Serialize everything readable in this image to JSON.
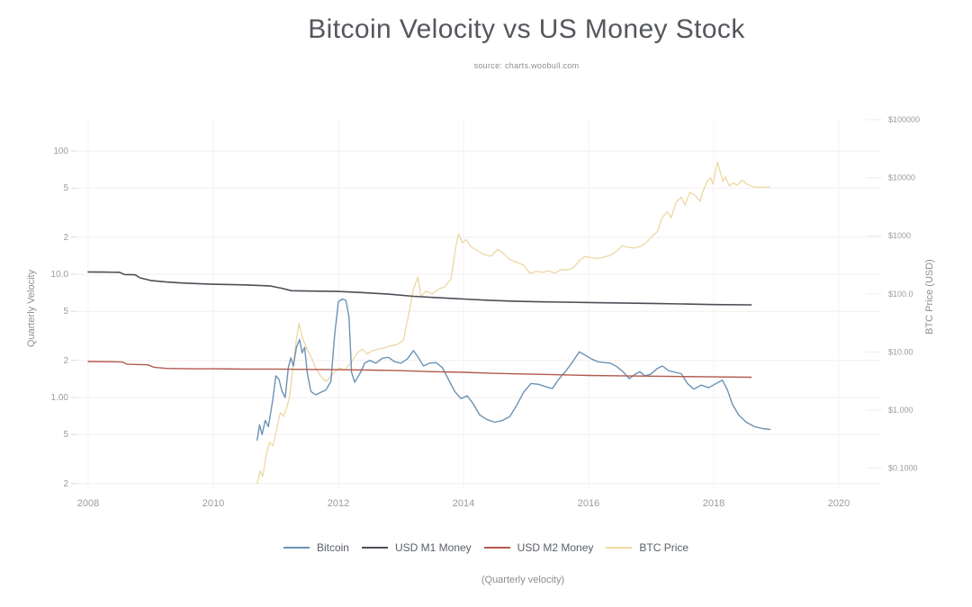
{
  "chart_data": {
    "type": "line",
    "title": "Bitcoin Velocity vs US Money Stock",
    "source": "source: charts.woobull.com",
    "footnote": "(Quarterly velocity)",
    "colors": {
      "background": "#ffffff",
      "grid": "#f5eeee",
      "tick_text": "#9b9b9b",
      "title_text": "#54575c"
    },
    "x_axis": {
      "ticks": [
        {
          "label": "2008",
          "value": 2008
        },
        {
          "label": "2010",
          "value": 2010
        },
        {
          "label": "2012",
          "value": 2012
        },
        {
          "label": "2014",
          "value": 2014
        },
        {
          "label": "2016",
          "value": 2016
        },
        {
          "label": "2018",
          "value": 2018
        },
        {
          "label": "2020",
          "value": 2020
        }
      ],
      "range": [
        2007.8,
        2020.4
      ]
    },
    "left_axis": {
      "title": "Quarterly Velocity",
      "scale": "log",
      "range": [
        0.18,
        160
      ],
      "ticks": [
        {
          "label": "100",
          "value": 100
        },
        {
          "label": "5",
          "value": 50
        },
        {
          "label": "2",
          "value": 20
        },
        {
          "label": "10.0",
          "value": 10
        },
        {
          "label": "5",
          "value": 5
        },
        {
          "label": "2",
          "value": 2
        },
        {
          "label": "1.00",
          "value": 1
        },
        {
          "label": "5",
          "value": 0.5
        },
        {
          "label": "2",
          "value": 0.2
        }
      ]
    },
    "right_axis": {
      "title": "BTC Price (USD)",
      "scale": "log",
      "range": [
        0.04,
        200000
      ],
      "ticks": [
        {
          "label": "$100000",
          "value": 100000
        },
        {
          "label": "$10000",
          "value": 10000
        },
        {
          "label": "$1000",
          "value": 1000
        },
        {
          "label": "$100.0",
          "value": 100
        },
        {
          "label": "$10.00",
          "value": 10
        },
        {
          "label": "$1.000",
          "value": 1
        },
        {
          "label": "$0.1000",
          "value": 0.1
        }
      ]
    },
    "series": [
      {
        "name": "Bitcoin",
        "axis": "left",
        "color": "#6b93b5",
        "stroke_width": 1.4,
        "z": 1,
        "points": [
          [
            2010.7,
            0.45
          ],
          [
            2010.74,
            0.6
          ],
          [
            2010.78,
            0.5
          ],
          [
            2010.83,
            0.65
          ],
          [
            2010.88,
            0.58
          ],
          [
            2010.95,
            0.95
          ],
          [
            2011.0,
            1.5
          ],
          [
            2011.05,
            1.4
          ],
          [
            2011.1,
            1.12
          ],
          [
            2011.15,
            1.0
          ],
          [
            2011.2,
            1.75
          ],
          [
            2011.24,
            2.1
          ],
          [
            2011.28,
            1.8
          ],
          [
            2011.33,
            2.55
          ],
          [
            2011.38,
            2.95
          ],
          [
            2011.42,
            2.3
          ],
          [
            2011.46,
            2.55
          ],
          [
            2011.5,
            1.6
          ],
          [
            2011.56,
            1.12
          ],
          [
            2011.64,
            1.05
          ],
          [
            2011.72,
            1.1
          ],
          [
            2011.8,
            1.15
          ],
          [
            2011.88,
            1.35
          ],
          [
            2011.94,
            3.2
          ],
          [
            2012.0,
            6.0
          ],
          [
            2012.06,
            6.3
          ],
          [
            2012.12,
            6.15
          ],
          [
            2012.17,
            4.5
          ],
          [
            2012.21,
            1.6
          ],
          [
            2012.26,
            1.33
          ],
          [
            2012.34,
            1.55
          ],
          [
            2012.42,
            1.9
          ],
          [
            2012.5,
            2.0
          ],
          [
            2012.6,
            1.9
          ],
          [
            2012.7,
            2.08
          ],
          [
            2012.8,
            2.12
          ],
          [
            2012.9,
            1.95
          ],
          [
            2013.0,
            1.9
          ],
          [
            2013.1,
            2.05
          ],
          [
            2013.2,
            2.4
          ],
          [
            2013.28,
            2.1
          ],
          [
            2013.36,
            1.8
          ],
          [
            2013.46,
            1.9
          ],
          [
            2013.56,
            1.92
          ],
          [
            2013.66,
            1.75
          ],
          [
            2013.76,
            1.4
          ],
          [
            2013.86,
            1.12
          ],
          [
            2013.96,
            0.98
          ],
          [
            2014.06,
            1.03
          ],
          [
            2014.16,
            0.88
          ],
          [
            2014.26,
            0.72
          ],
          [
            2014.38,
            0.66
          ],
          [
            2014.5,
            0.63
          ],
          [
            2014.62,
            0.65
          ],
          [
            2014.74,
            0.7
          ],
          [
            2014.86,
            0.88
          ],
          [
            2014.96,
            1.1
          ],
          [
            2015.08,
            1.3
          ],
          [
            2015.2,
            1.28
          ],
          [
            2015.32,
            1.22
          ],
          [
            2015.42,
            1.18
          ],
          [
            2015.52,
            1.4
          ],
          [
            2015.64,
            1.65
          ],
          [
            2015.76,
            2.0
          ],
          [
            2015.85,
            2.35
          ],
          [
            2015.95,
            2.2
          ],
          [
            2016.05,
            2.05
          ],
          [
            2016.15,
            1.95
          ],
          [
            2016.25,
            1.92
          ],
          [
            2016.35,
            1.9
          ],
          [
            2016.45,
            1.78
          ],
          [
            2016.55,
            1.62
          ],
          [
            2016.65,
            1.42
          ],
          [
            2016.75,
            1.55
          ],
          [
            2016.82,
            1.62
          ],
          [
            2016.9,
            1.5
          ],
          [
            2017.0,
            1.55
          ],
          [
            2017.1,
            1.72
          ],
          [
            2017.18,
            1.8
          ],
          [
            2017.28,
            1.65
          ],
          [
            2017.38,
            1.6
          ],
          [
            2017.48,
            1.56
          ],
          [
            2017.58,
            1.3
          ],
          [
            2017.68,
            1.17
          ],
          [
            2017.8,
            1.26
          ],
          [
            2017.92,
            1.2
          ],
          [
            2018.04,
            1.3
          ],
          [
            2018.14,
            1.38
          ],
          [
            2018.22,
            1.15
          ],
          [
            2018.3,
            0.88
          ],
          [
            2018.4,
            0.72
          ],
          [
            2018.52,
            0.63
          ],
          [
            2018.65,
            0.58
          ],
          [
            2018.78,
            0.56
          ],
          [
            2018.9,
            0.55
          ]
        ]
      },
      {
        "name": "USD M1 Money",
        "axis": "left",
        "color": "#4d4e57",
        "stroke_width": 1.6,
        "z": 2,
        "points": [
          [
            2008.0,
            10.45
          ],
          [
            2008.25,
            10.42
          ],
          [
            2008.5,
            10.38
          ],
          [
            2008.58,
            9.95
          ],
          [
            2008.75,
            9.9
          ],
          [
            2008.83,
            9.35
          ],
          [
            2009.0,
            8.9
          ],
          [
            2009.25,
            8.65
          ],
          [
            2009.5,
            8.5
          ],
          [
            2009.75,
            8.4
          ],
          [
            2010.0,
            8.3
          ],
          [
            2010.5,
            8.2
          ],
          [
            2010.9,
            8.05
          ],
          [
            2011.1,
            7.7
          ],
          [
            2011.25,
            7.35
          ],
          [
            2011.6,
            7.3
          ],
          [
            2012.0,
            7.25
          ],
          [
            2012.4,
            7.1
          ],
          [
            2012.8,
            6.9
          ],
          [
            2013.2,
            6.62
          ],
          [
            2013.6,
            6.45
          ],
          [
            2014.0,
            6.3
          ],
          [
            2014.4,
            6.15
          ],
          [
            2014.8,
            6.05
          ],
          [
            2015.2,
            5.98
          ],
          [
            2015.6,
            5.94
          ],
          [
            2016.0,
            5.9
          ],
          [
            2016.5,
            5.85
          ],
          [
            2017.0,
            5.8
          ],
          [
            2017.5,
            5.74
          ],
          [
            2018.0,
            5.68
          ],
          [
            2018.6,
            5.65
          ]
        ]
      },
      {
        "name": "USD M2 Money",
        "axis": "left",
        "color": "#b25a4c",
        "stroke_width": 1.4,
        "z": 3,
        "points": [
          [
            2008.0,
            1.96
          ],
          [
            2008.4,
            1.95
          ],
          [
            2008.55,
            1.94
          ],
          [
            2008.62,
            1.86
          ],
          [
            2008.95,
            1.84
          ],
          [
            2009.05,
            1.76
          ],
          [
            2009.25,
            1.72
          ],
          [
            2009.6,
            1.71
          ],
          [
            2010.0,
            1.71
          ],
          [
            2010.5,
            1.7
          ],
          [
            2011.0,
            1.7
          ],
          [
            2011.5,
            1.69
          ],
          [
            2012.0,
            1.68
          ],
          [
            2012.5,
            1.67
          ],
          [
            2013.0,
            1.65
          ],
          [
            2013.5,
            1.62
          ],
          [
            2014.0,
            1.6
          ],
          [
            2014.5,
            1.57
          ],
          [
            2015.0,
            1.55
          ],
          [
            2015.5,
            1.53
          ],
          [
            2016.0,
            1.51
          ],
          [
            2016.5,
            1.5
          ],
          [
            2017.0,
            1.49
          ],
          [
            2017.5,
            1.48
          ],
          [
            2018.0,
            1.47
          ],
          [
            2018.6,
            1.46
          ]
        ]
      },
      {
        "name": "BTC Price",
        "axis": "right",
        "color": "#ecd8a2",
        "stroke_width": 1.3,
        "z": 0,
        "points": [
          [
            2010.7,
            0.055
          ],
          [
            2010.75,
            0.09
          ],
          [
            2010.79,
            0.072
          ],
          [
            2010.85,
            0.18
          ],
          [
            2010.9,
            0.28
          ],
          [
            2010.95,
            0.24
          ],
          [
            2011.02,
            0.5
          ],
          [
            2011.07,
            0.9
          ],
          [
            2011.12,
            0.78
          ],
          [
            2011.17,
            1.05
          ],
          [
            2011.22,
            1.7
          ],
          [
            2011.27,
            5.0
          ],
          [
            2011.32,
            14.0
          ],
          [
            2011.37,
            31.0
          ],
          [
            2011.43,
            17.0
          ],
          [
            2011.5,
            11.0
          ],
          [
            2011.57,
            8.0
          ],
          [
            2011.64,
            5.2
          ],
          [
            2011.72,
            3.8
          ],
          [
            2011.8,
            3.1
          ],
          [
            2011.88,
            3.8
          ],
          [
            2011.95,
            4.6
          ],
          [
            2012.02,
            5.3
          ],
          [
            2012.1,
            4.9
          ],
          [
            2012.2,
            6.5
          ],
          [
            2012.3,
            9.5
          ],
          [
            2012.38,
            11.2
          ],
          [
            2012.46,
            9.2
          ],
          [
            2012.54,
            10.5
          ],
          [
            2012.64,
            11.2
          ],
          [
            2012.74,
            11.8
          ],
          [
            2012.84,
            12.8
          ],
          [
            2012.94,
            13.4
          ],
          [
            2013.04,
            16.0
          ],
          [
            2013.12,
            42.0
          ],
          [
            2013.2,
            120.0
          ],
          [
            2013.27,
            195.0
          ],
          [
            2013.32,
            90.0
          ],
          [
            2013.4,
            112.0
          ],
          [
            2013.5,
            100.0
          ],
          [
            2013.6,
            120.0
          ],
          [
            2013.7,
            133.0
          ],
          [
            2013.8,
            180.0
          ],
          [
            2013.87,
            600.0
          ],
          [
            2013.92,
            1080.0
          ],
          [
            2013.98,
            760.0
          ],
          [
            2014.04,
            860.0
          ],
          [
            2014.12,
            650.0
          ],
          [
            2014.22,
            560.0
          ],
          [
            2014.32,
            480.0
          ],
          [
            2014.44,
            445.0
          ],
          [
            2014.54,
            580.0
          ],
          [
            2014.62,
            520.0
          ],
          [
            2014.74,
            390.0
          ],
          [
            2014.86,
            345.0
          ],
          [
            2014.96,
            315.0
          ],
          [
            2015.06,
            225.0
          ],
          [
            2015.16,
            245.0
          ],
          [
            2015.26,
            235.0
          ],
          [
            2015.36,
            248.0
          ],
          [
            2015.46,
            228.0
          ],
          [
            2015.56,
            262.0
          ],
          [
            2015.66,
            258.0
          ],
          [
            2015.76,
            285.0
          ],
          [
            2015.86,
            380.0
          ],
          [
            2015.94,
            440.0
          ],
          [
            2016.04,
            420.0
          ],
          [
            2016.14,
            405.0
          ],
          [
            2016.24,
            428.0
          ],
          [
            2016.34,
            458.0
          ],
          [
            2016.44,
            540.0
          ],
          [
            2016.54,
            670.0
          ],
          [
            2016.62,
            640.0
          ],
          [
            2016.72,
            615.0
          ],
          [
            2016.82,
            650.0
          ],
          [
            2016.92,
            755.0
          ],
          [
            2017.02,
            1000.0
          ],
          [
            2017.1,
            1180.0
          ],
          [
            2017.18,
            2100.0
          ],
          [
            2017.26,
            2600.0
          ],
          [
            2017.32,
            2050.0
          ],
          [
            2017.4,
            3800.0
          ],
          [
            2017.48,
            4600.0
          ],
          [
            2017.54,
            3400.0
          ],
          [
            2017.62,
            5600.0
          ],
          [
            2017.7,
            5000.0
          ],
          [
            2017.78,
            3900.0
          ],
          [
            2017.84,
            6300.0
          ],
          [
            2017.9,
            8800.0
          ],
          [
            2017.95,
            9900.0
          ],
          [
            2017.99,
            7800.0
          ],
          [
            2018.06,
            18500.0
          ],
          [
            2018.11,
            12000.0
          ],
          [
            2018.15,
            8600.0
          ],
          [
            2018.19,
            10400.0
          ],
          [
            2018.25,
            7200.0
          ],
          [
            2018.31,
            8100.0
          ],
          [
            2018.38,
            7400.0
          ],
          [
            2018.45,
            9100.0
          ],
          [
            2018.53,
            7800.0
          ],
          [
            2018.62,
            7000.0
          ],
          [
            2018.75,
            6800.0
          ],
          [
            2018.9,
            6900.0
          ]
        ]
      }
    ]
  }
}
